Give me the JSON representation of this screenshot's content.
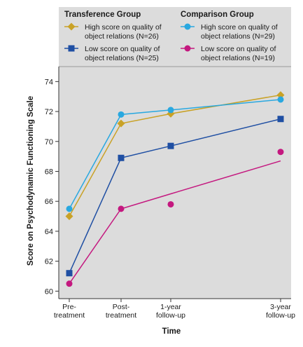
{
  "chart_data": {
    "type": "line",
    "title": "",
    "xlabel": "Time",
    "ylabel": "Score on Psychodynamic Functioning Scale",
    "ylim": [
      59.5,
      75
    ],
    "yticks": [
      60,
      62,
      64,
      66,
      68,
      70,
      72,
      74
    ],
    "grid": false,
    "legend_placement": "top",
    "categories": [
      "Pre-\ntreatment",
      "Post-\ntreatment",
      "1-year\nfollow-up",
      "3-year\nfollow-up"
    ],
    "x": [
      0,
      1.5,
      3,
      6
    ],
    "legend_groups": [
      {
        "title": "Transference Group",
        "series_indices": [
          0,
          1
        ]
      },
      {
        "title": "Comparison Group",
        "series_indices": [
          2,
          3
        ]
      }
    ],
    "series": [
      {
        "name": "High score on quality of\nobject relations (N=26)",
        "color": "#c9a227",
        "marker": "diamond",
        "line": "connect",
        "values": [
          65.0,
          71.2,
          71.85,
          73.1
        ]
      },
      {
        "name": "Low score on quality of\nobject relations (N=25)",
        "color": "#1f4fa3",
        "marker": "square",
        "line": "connect",
        "values": [
          61.2,
          68.9,
          69.7,
          71.5
        ]
      },
      {
        "name": "High score on quality of\nobject relations (N=29)",
        "color": "#29a8e0",
        "marker": "circle",
        "line": "connect",
        "values": [
          65.5,
          71.8,
          72.1,
          72.8
        ]
      },
      {
        "name": "Low score on quality of\nobject relations (N=19)",
        "color": "#c4187f",
        "marker": "circle",
        "line": "fit",
        "values": [
          60.5,
          65.5,
          65.8,
          69.3
        ],
        "fit_line": [
          60.5,
          65.5,
          66.5,
          68.7
        ]
      }
    ]
  }
}
